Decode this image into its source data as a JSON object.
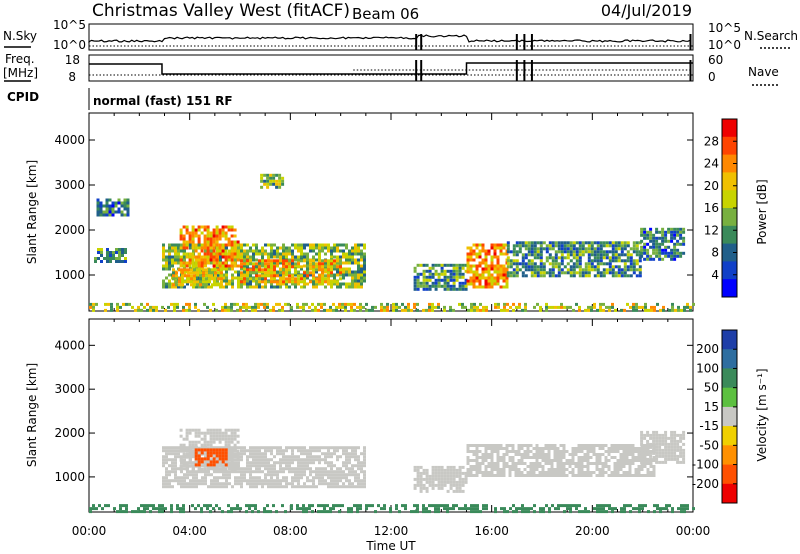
{
  "header": {
    "title": "Christmas Valley West (fitACF)",
    "beam": "Beam 06",
    "date": "04/Jul/2019"
  },
  "nsky_panel": {
    "left_label": "N.Sky",
    "right_label": "N.Search",
    "left_ticks": [
      "10^5",
      "10^0"
    ],
    "right_ticks": [
      "10^5",
      "10^0"
    ]
  },
  "freq_panel": {
    "left_label_line1": "Freq.",
    "left_label_line2": "[MHz]",
    "right_label": "Nave",
    "left_ticks": [
      "18",
      "8"
    ],
    "right_ticks": [
      "60",
      "0"
    ],
    "cpid_label": "CPID",
    "cpid_text": "normal (fast) 151 RF"
  },
  "chart_data": [
    {
      "type": "heatmap",
      "title": "",
      "ylabel": "Slant Range [km]",
      "xlabel": "",
      "ylim": [
        200,
        4600
      ],
      "yticks": [
        "4000",
        "3000",
        "2000",
        "1000"
      ],
      "xlim": [
        "00:00",
        "24:00"
      ],
      "colorbar": {
        "label": "Power [dB]",
        "ticks": [
          "28",
          "24",
          "20",
          "16",
          "12",
          "8",
          "4"
        ],
        "colors": [
          "#ee0000",
          "#ff4400",
          "#ff8800",
          "#f0c000",
          "#c8d400",
          "#78b040",
          "#3a8a5a",
          "#205f8a",
          "#1040c8",
          "#0000ff"
        ]
      },
      "echo_regions": [
        {
          "start_hour": 2.9,
          "end_hour": 10.9,
          "min_km": 750,
          "max_km": 1700,
          "value": 14
        },
        {
          "start_hour": 3.6,
          "end_hour": 5.9,
          "min_km": 1200,
          "max_km": 2100,
          "value": 22
        },
        {
          "start_hour": 6.0,
          "end_hour": 10.0,
          "min_km": 850,
          "max_km": 1350,
          "value": 20
        },
        {
          "start_hour": 3.3,
          "end_hour": 5.3,
          "min_km": 750,
          "max_km": 1150,
          "value": 18
        },
        {
          "start_hour": 6.8,
          "end_hour": 7.7,
          "min_km": 2950,
          "max_km": 3250,
          "value": 14
        },
        {
          "start_hour": 12.9,
          "end_hour": 15.0,
          "min_km": 650,
          "max_km": 1250,
          "value": 10
        },
        {
          "start_hour": 15.0,
          "end_hour": 16.6,
          "min_km": 750,
          "max_km": 1700,
          "value": 22
        },
        {
          "start_hour": 16.6,
          "end_hour": 21.9,
          "min_km": 1000,
          "max_km": 1750,
          "value": 10
        },
        {
          "start_hour": 21.9,
          "end_hour": 23.6,
          "min_km": 1350,
          "max_km": 2050,
          "value": 8
        },
        {
          "start_hour": 0.2,
          "end_hour": 1.5,
          "min_km": 1300,
          "max_km": 1600,
          "value": 10
        },
        {
          "start_hour": 0.3,
          "end_hour": 1.6,
          "min_km": 2300,
          "max_km": 2700,
          "value": 8
        },
        {
          "start_hour": 0.0,
          "end_hour": 24.0,
          "min_km": 200,
          "max_km": 380,
          "value": 16
        }
      ]
    },
    {
      "type": "heatmap",
      "title": "",
      "ylabel": "Slant Range [km]",
      "xlabel": "Time UT",
      "ylim": [
        200,
        4600
      ],
      "yticks": [
        "4000",
        "3000",
        "2000",
        "1000"
      ],
      "xticks": [
        "00:00",
        "04:00",
        "08:00",
        "12:00",
        "16:00",
        "20:00",
        "00:00"
      ],
      "xlim": [
        "00:00",
        "24:00"
      ],
      "colorbar": {
        "label": "Velocity [m s⁻¹]",
        "ticks": [
          "200",
          "100",
          "50",
          "15",
          "-15",
          "-50",
          "-100",
          "-200"
        ],
        "colors": [
          "#1e3ea8",
          "#2e6ea0",
          "#3a8a5a",
          "#5cc040",
          "#c8c8c4",
          "#f0d000",
          "#ff9000",
          "#ff5000",
          "#ee0000"
        ]
      },
      "echo_regions": [
        {
          "start_hour": 2.9,
          "end_hour": 10.9,
          "min_km": 750,
          "max_km": 1700,
          "value": 0
        },
        {
          "start_hour": 3.6,
          "end_hour": 5.9,
          "min_km": 1200,
          "max_km": 2100,
          "value": 0
        },
        {
          "start_hour": 4.2,
          "end_hour": 5.4,
          "min_km": 1250,
          "max_km": 1650,
          "value": -100
        },
        {
          "start_hour": 12.9,
          "end_hour": 15.0,
          "min_km": 650,
          "max_km": 1250,
          "value": 0
        },
        {
          "start_hour": 15.0,
          "end_hour": 22.5,
          "min_km": 1000,
          "max_km": 1750,
          "value": 0
        },
        {
          "start_hour": 21.9,
          "end_hour": 23.6,
          "min_km": 1350,
          "max_km": 2050,
          "value": 0
        },
        {
          "start_hour": 0.0,
          "end_hour": 24.0,
          "min_km": 200,
          "max_km": 380,
          "value": 50
        }
      ]
    }
  ]
}
